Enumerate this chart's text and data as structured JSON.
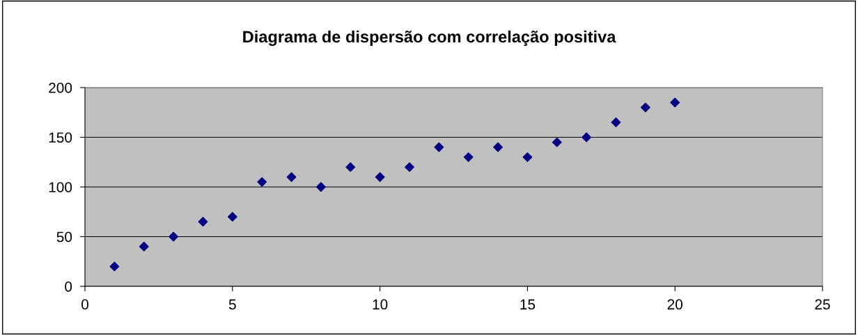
{
  "chart_data": {
    "type": "scatter",
    "title": "Diagrama de dispersão com correlação positiva",
    "x": [
      1,
      2,
      3,
      4,
      5,
      6,
      7,
      8,
      9,
      10,
      11,
      12,
      13,
      14,
      15,
      16,
      17,
      18,
      19,
      20
    ],
    "series": [
      {
        "color": "#000080",
        "values": [
          20,
          40,
          50,
          65,
          70,
          105,
          110,
          100,
          120,
          110,
          120,
          140,
          130,
          140,
          130,
          145,
          150,
          165,
          180,
          185
        ]
      }
    ],
    "xlim": [
      0,
      25
    ],
    "xticks": [
      0,
      5,
      10,
      15,
      20,
      25
    ],
    "ylim": [
      0,
      200
    ],
    "yticks": [
      0,
      50,
      100,
      150,
      200
    ],
    "grid": "y",
    "marker": "diamond"
  }
}
